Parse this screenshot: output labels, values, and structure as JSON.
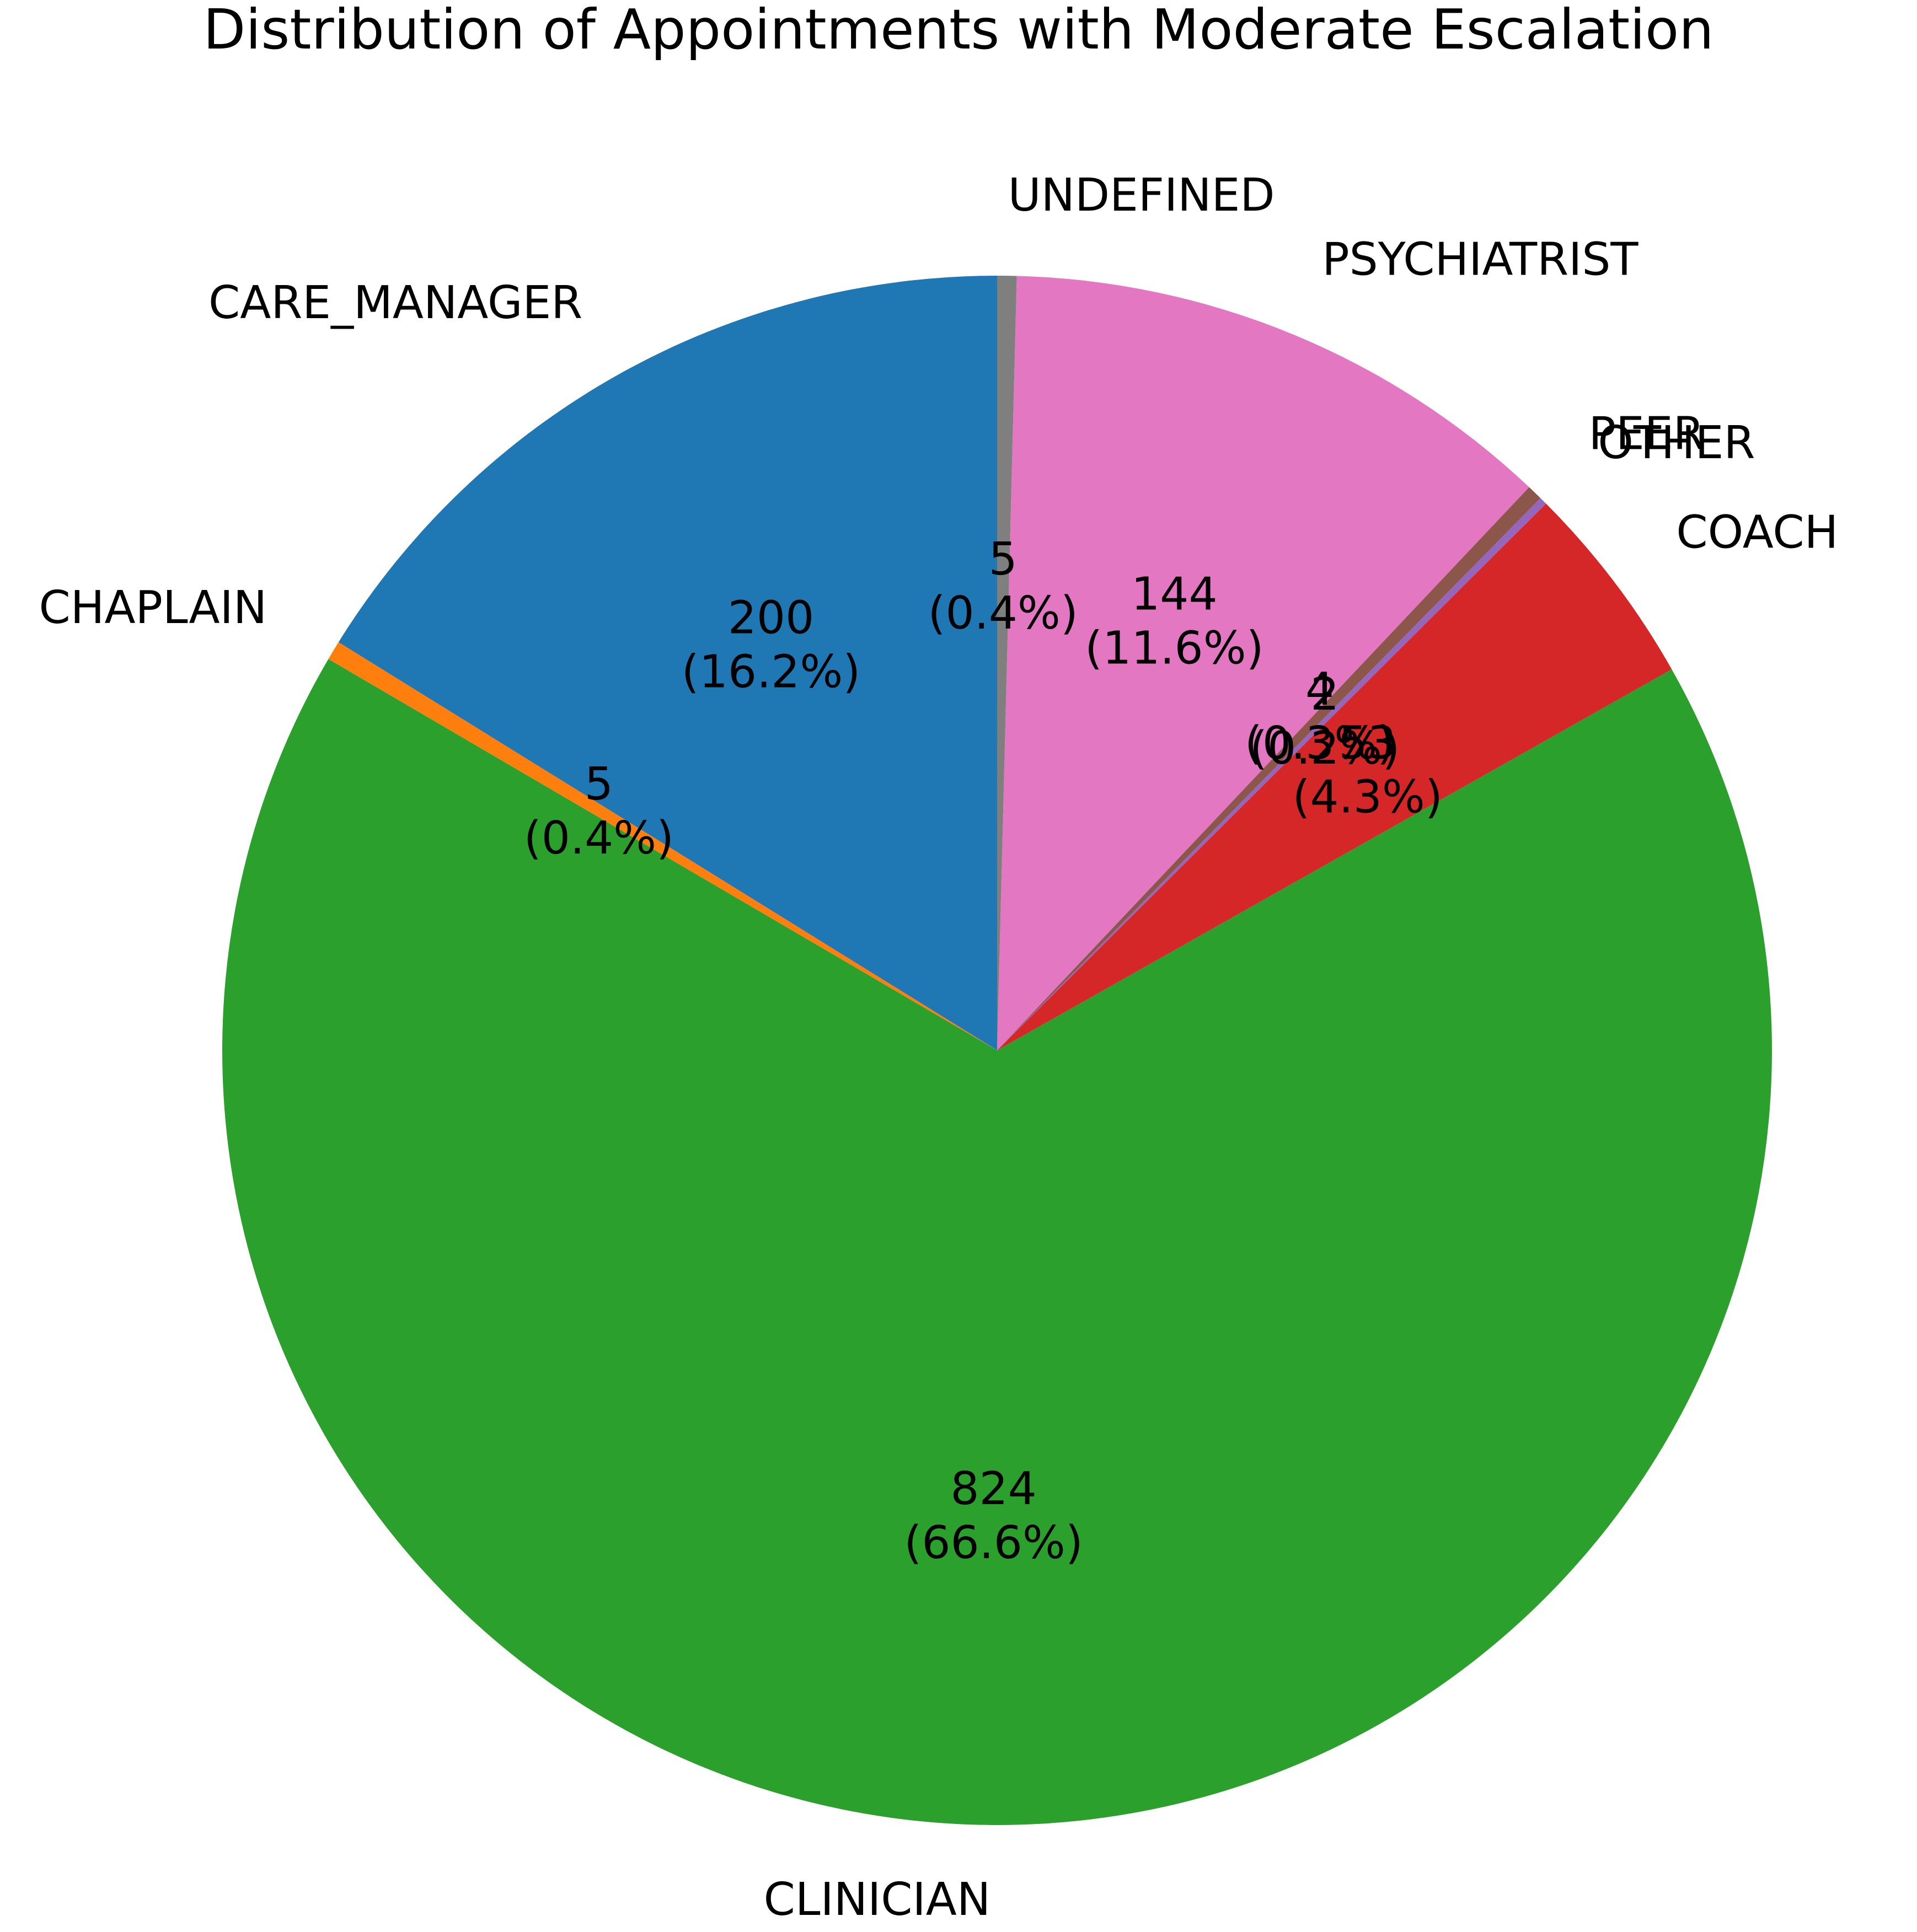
{
  "chart_data": {
    "type": "pie",
    "title": "Distribution of Appointments with Moderate Escalation",
    "slices": [
      {
        "label": "CARE_MANAGER",
        "value": 200,
        "percent_label": "(16.2%)",
        "color": "#1f77b4"
      },
      {
        "label": "CHAPLAIN",
        "value": 5,
        "percent_label": "(0.4%)",
        "color": "#ff7f0e"
      },
      {
        "label": "CLINICIAN",
        "value": 824,
        "percent_label": "(66.6%)",
        "color": "#2ca02c"
      },
      {
        "label": "COACH",
        "value": 53,
        "percent_label": "(4.3%)",
        "color": "#d62728"
      },
      {
        "label": "OTHER",
        "value": 2,
        "percent_label": "(0.2%)",
        "color": "#9467bd"
      },
      {
        "label": "PEER",
        "value": 4,
        "percent_label": "(0.3%)",
        "color": "#8c564b"
      },
      {
        "label": "PSYCHIATRIST",
        "value": 144,
        "percent_label": "(11.6%)",
        "color": "#e377c2"
      },
      {
        "label": "UNDEFINED",
        "value": 5,
        "percent_label": "(0.4%)",
        "color": "#7f7f7f"
      }
    ],
    "start_angle_deg": 90,
    "direction": "counterclockwise"
  }
}
